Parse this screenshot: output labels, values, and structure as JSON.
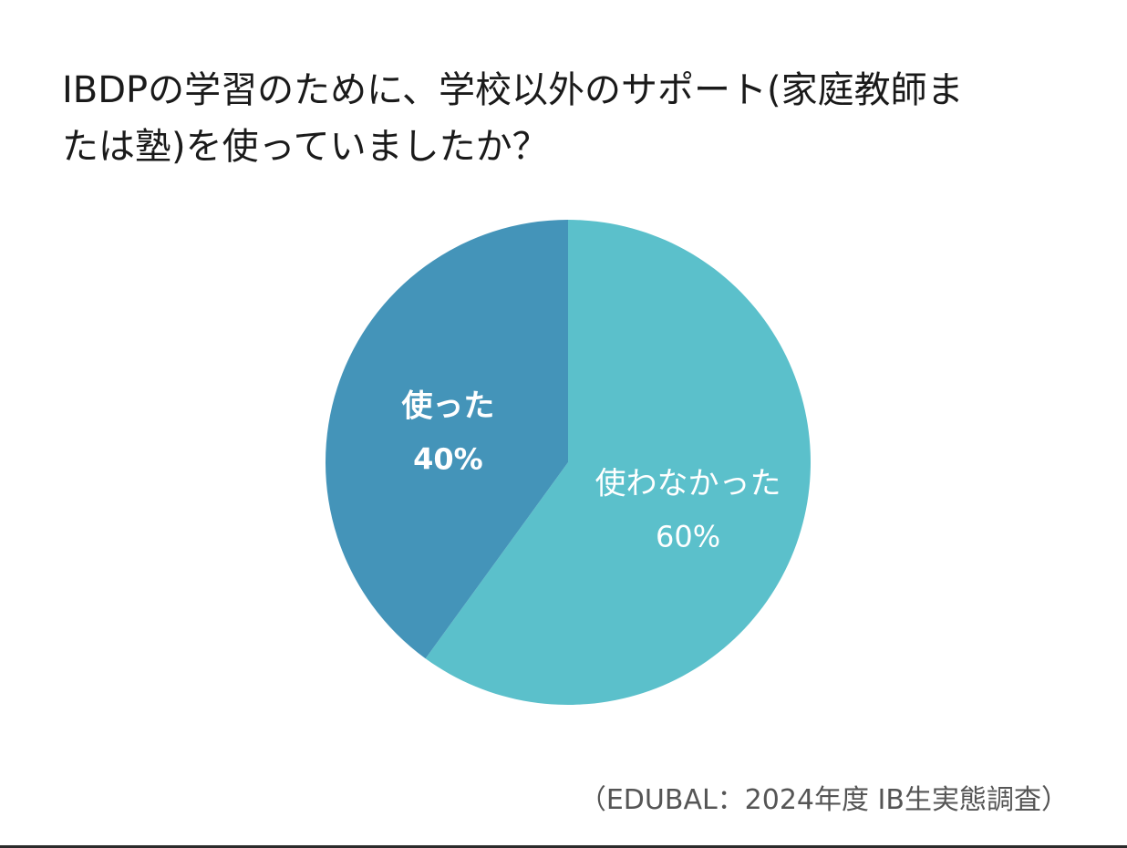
{
  "chart_data": {
    "type": "pie",
    "title": "IBDPの学習のために、学校以外のサポート(家庭教師または塾)を使っていましたか？",
    "slices": [
      {
        "label": "使わなかった",
        "value": 60,
        "value_label": "60%",
        "color": "#5bc0cb",
        "label_bold": false
      },
      {
        "label": "使った",
        "value": 40,
        "value_label": "40%",
        "color": "#4494b9",
        "label_bold": true
      }
    ],
    "start": "12 o'clock, clockwise",
    "legend": "none",
    "source": "（EDUBAL：2024年度 IB生実態調査）"
  },
  "title_lines": [
    "IBDPの学習のために、学校以外のサポート(家庭教師ま",
    "たは塾)を使っていましたか？"
  ]
}
